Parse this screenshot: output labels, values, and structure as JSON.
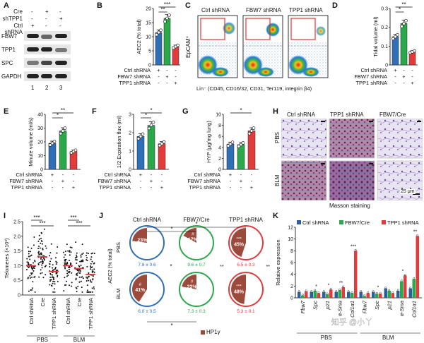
{
  "panels": {
    "A": {
      "letter": "A",
      "rows": [
        "Cre",
        "shTPP1",
        "Ctrl shRNA"
      ],
      "signs": [
        [
          "-",
          "+",
          "-"
        ],
        [
          "-",
          "-",
          "+"
        ],
        [
          "+",
          "-",
          "-"
        ]
      ],
      "blots": [
        "FBW7",
        "TPP1",
        "SPC",
        "GAPDH"
      ],
      "lanes": [
        "1",
        "2",
        "3"
      ]
    },
    "B": {
      "letter": "B",
      "ylabel": "AEC2 (% total)",
      "yticks": [
        "0",
        "5",
        "10",
        "15",
        "20"
      ],
      "sig": [
        "***",
        "**"
      ],
      "conditions": [
        "Ctrl shRNA",
        "FBW7 shRNA",
        "TPP1 shRNA"
      ],
      "signs": [
        [
          "+",
          "-",
          "-"
        ],
        [
          "-",
          "+",
          "-"
        ],
        [
          "-",
          "-",
          "+"
        ]
      ]
    },
    "C": {
      "letter": "C",
      "titles": [
        "Ctrl shRNA",
        "FBW7 shRNA",
        "TPP1 shRNA"
      ],
      "ylabel": "EpCAM⁺",
      "xlabel": "Lin⁻ (CD45, CD16/32, CD31, Ter119, integrin β4)"
    },
    "D": {
      "letter": "D",
      "ylabel": "Tidal volume (ml)",
      "yticks": [
        "0",
        "0.1",
        "0.2",
        "0.3"
      ],
      "sig": [
        "**",
        "*"
      ],
      "conditions": [
        "Ctrl shRNA",
        "FBW7 shRNA",
        "TPP1 shRNA"
      ],
      "signs": [
        [
          "+",
          "-",
          "-"
        ],
        [
          "-",
          "+",
          "-"
        ],
        [
          "-",
          "-",
          "+"
        ]
      ]
    },
    "E": {
      "letter": "E",
      "ylabel": "Minute volume (ml/s)",
      "yticks": [
        "0",
        "10",
        "20",
        "30",
        "40"
      ],
      "sig": [
        "**",
        "*"
      ],
      "conditions": [
        "Ctrl shRNA",
        "FBW7 shRNA",
        "TPP1 shRNA"
      ],
      "signs": [
        [
          "+",
          "-",
          "-"
        ],
        [
          "-",
          "+",
          "-"
        ],
        [
          "-",
          "-",
          "+"
        ]
      ]
    },
    "F": {
      "letter": "F",
      "ylabel": "1/2 Expiration flux (ml)",
      "yticks": [
        "0",
        "1",
        "2",
        "3"
      ],
      "sig": [
        "*",
        "*"
      ],
      "conditions": [
        "Ctrl shRNA",
        "FBW7 shRNA",
        "TPP1 shRNA"
      ],
      "signs": [
        [
          "+",
          "-",
          "-"
        ],
        [
          "-",
          "+",
          "-"
        ],
        [
          "-",
          "-",
          "+"
        ]
      ]
    },
    "G": {
      "letter": "G",
      "ylabel": "HYP (μg/mg lung)",
      "yticks": [
        "0",
        "2",
        "4",
        "6",
        "8",
        "10"
      ],
      "sig": [
        "*"
      ],
      "conditions": [
        "Ctrl shRNA",
        "FBW7 shRNA",
        "TPP1 shRNA"
      ],
      "signs": [
        [
          "+",
          "-",
          "-"
        ],
        [
          "-",
          "+",
          "-"
        ],
        [
          "-",
          "-",
          "+"
        ]
      ]
    },
    "H": {
      "letter": "H",
      "cols": [
        "Ctrl shRNA",
        "TPP1 shRNA",
        "FBW7/Cre"
      ],
      "rows": [
        "PBS",
        "BLM"
      ],
      "scale": "25 μm",
      "caption": "Masson staining"
    },
    "I": {
      "letter": "I",
      "ylabel": "Telomeres (×10³)",
      "yticks": [
        "0",
        "0.5",
        "1.0",
        "1.5",
        "2.0",
        "2.5"
      ],
      "groups": [
        "Ctrl shRNA",
        "Cre",
        "TPP1 shRNA",
        "Ctrl shRNA",
        "Cre",
        "TPP1 shRNA"
      ],
      "treatments": [
        "PBS",
        "BLM"
      ],
      "sig": [
        "***",
        "***",
        "***",
        "***"
      ]
    },
    "J": {
      "letter": "J",
      "cols": [
        "Ctrl shRNA",
        "FBW7/Cre",
        "TPP1 shRNA"
      ],
      "rows": [
        "PBS",
        "BLM"
      ],
      "ylabel": "AEC2 (% total)",
      "pct": [
        [
          "23%",
          "17%",
          "45%"
        ],
        [
          "41%",
          "22%",
          "48%"
        ]
      ],
      "stats": [
        [
          "7.8 ± 0.6",
          "9.6 ± 0.7",
          "6.5 ± 0.3"
        ],
        [
          "6.0 ± 0.5",
          "7.3 ± 0.3",
          "5.3 ± 0.1"
        ]
      ],
      "marks": [
        [
          "",
          "#",
          "***"
        ],
        [
          "#",
          "#",
          "***"
        ]
      ],
      "sig": [
        "*",
        "*",
        "*",
        "**",
        "**"
      ],
      "legend": "HP1γ"
    },
    "K": {
      "letter": "K",
      "legend": [
        "Ctrl shRNA",
        "FBW7/Cre",
        "TPP1 shRNA"
      ],
      "ylabel": "Relative expression",
      "yticks": [
        "0",
        "2",
        "4",
        "6",
        "8",
        "10",
        "12"
      ],
      "genes": [
        "Fbw7",
        "Spc",
        "p21",
        "α-Sma",
        "Col1α1",
        "Fbw7",
        "Spc",
        "p21",
        "α-Sma",
        "Col1α1"
      ],
      "groups": [
        "PBS",
        "BLM"
      ],
      "watermark": "知乎 @小丫",
      "sig": [
        "*",
        "*",
        "**",
        "***",
        "*",
        "*",
        "**"
      ]
    }
  },
  "chart_data": [
    {
      "panel": "B",
      "type": "bar",
      "categories": [
        "Ctrl shRNA",
        "FBW7 shRNA",
        "TPP1 shRNA"
      ],
      "values": [
        11.5,
        16.5,
        6.5
      ],
      "colors": [
        "#2f6fb8",
        "#2aa84a",
        "#e23b3b"
      ],
      "ylim": [
        0,
        20
      ],
      "ylabel": "AEC2 (% total)"
    },
    {
      "panel": "D",
      "type": "bar",
      "categories": [
        "Ctrl shRNA",
        "FBW7 shRNA",
        "TPP1 shRNA"
      ],
      "values": [
        0.15,
        0.22,
        0.07
      ],
      "colors": [
        "#2f6fb8",
        "#2aa84a",
        "#e23b3b"
      ],
      "ylim": [
        0,
        0.3
      ],
      "ylabel": "Tidal volume (ml)"
    },
    {
      "panel": "E",
      "type": "bar",
      "categories": [
        "Ctrl shRNA",
        "FBW7 shRNA",
        "TPP1 shRNA"
      ],
      "values": [
        19,
        28,
        13
      ],
      "colors": [
        "#2f6fb8",
        "#2aa84a",
        "#e23b3b"
      ],
      "ylim": [
        0,
        40
      ],
      "ylabel": "Minute volume (ml/s)"
    },
    {
      "panel": "F",
      "type": "bar",
      "categories": [
        "Ctrl shRNA",
        "FBW7 shRNA",
        "TPP1 shRNA"
      ],
      "values": [
        1.8,
        2.4,
        1.4
      ],
      "colors": [
        "#2f6fb8",
        "#2aa84a",
        "#e23b3b"
      ],
      "ylim": [
        0,
        3
      ],
      "ylabel": "1/2 Expiration flux (ml)"
    },
    {
      "panel": "G",
      "type": "bar",
      "categories": [
        "Ctrl shRNA",
        "FBW7 shRNA",
        "TPP1 shRNA"
      ],
      "values": [
        4.6,
        4.5,
        7.0
      ],
      "colors": [
        "#2f6fb8",
        "#2aa84a",
        "#e23b3b"
      ],
      "ylim": [
        0,
        10
      ],
      "ylabel": "HYP (μg/mg lung)"
    },
    {
      "panel": "K",
      "type": "bar",
      "categories": [
        "Fbw7",
        "Spc",
        "p21",
        "α-Sma",
        "Col1α1",
        "Fbw7",
        "Spc",
        "p21",
        "α-Sma",
        "Col1α1"
      ],
      "series": [
        {
          "name": "Ctrl shRNA",
          "color": "#2f5e9e",
          "values": [
            1,
            1,
            1,
            1,
            1,
            1,
            1,
            1.6,
            1.2,
            1.6
          ]
        },
        {
          "name": "FBW7/Cre",
          "color": "#2aa84a",
          "values": [
            0.4,
            1.2,
            0.6,
            1.3,
            0.8,
            0.3,
            0.7,
            1.2,
            2.8,
            3.2
          ]
        },
        {
          "name": "TPP1 shRNA",
          "color": "#e23b3b",
          "values": [
            1.1,
            0.8,
            1.4,
            1.8,
            8,
            0.8,
            0.7,
            0.8,
            3.8,
            10.5
          ]
        }
      ],
      "ylim": [
        0,
        12
      ],
      "ylabel": "Relative expression"
    }
  ]
}
